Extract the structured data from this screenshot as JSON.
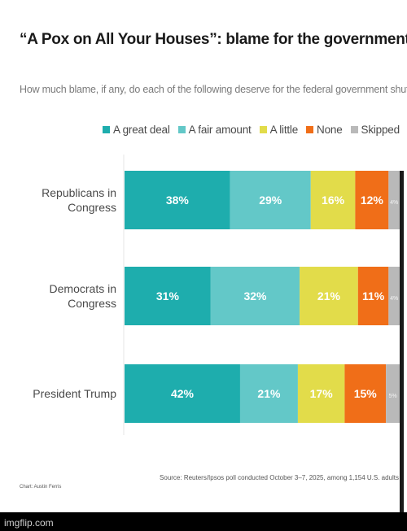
{
  "chart_data": {
    "type": "bar",
    "orientation": "horizontal",
    "stacked": true,
    "title": "“A Pox on All Your Houses”: blame for the government shutdown",
    "subtitle": "How much blame, if any, do each of the following deserve for the federal government shutdown?",
    "categories": [
      "Republicans in Congress",
      "Democrats in Congress",
      "President Trump"
    ],
    "category_lines": [
      [
        "Republicans in",
        "Congress"
      ],
      [
        "Democrats in",
        "Congress"
      ],
      [
        "President Trump"
      ]
    ],
    "series": [
      {
        "name": "A great deal",
        "color": "#1eadad",
        "values": [
          38,
          31,
          42
        ],
        "labels": [
          "38%",
          "31%",
          "42%"
        ]
      },
      {
        "name": "A fair amount",
        "color": "#63c8c8",
        "values": [
          29,
          32,
          21
        ],
        "labels": [
          "29%",
          "32%",
          "21%"
        ]
      },
      {
        "name": "A little",
        "color": "#e2dc4a",
        "values": [
          16,
          21,
          17
        ],
        "labels": [
          "16%",
          "21%",
          "17%"
        ]
      },
      {
        "name": "None",
        "color": "#f06e18",
        "values": [
          12,
          11,
          15
        ],
        "labels": [
          "12%",
          "11%",
          "15%"
        ]
      },
      {
        "name": "Skipped",
        "color": "#b9b9b9",
        "values": [
          4,
          4,
          5
        ],
        "labels": [
          "4%",
          "4%",
          "5%"
        ]
      }
    ],
    "legend_position": "top",
    "grid": false
  },
  "footer": {
    "credit": "Chart: Austin Ferris",
    "source": "Source: Reuters/Ipsos poll conducted October 3–7, 2025, among 1,154 U.S. adults"
  },
  "watermark": "imgflip.com"
}
